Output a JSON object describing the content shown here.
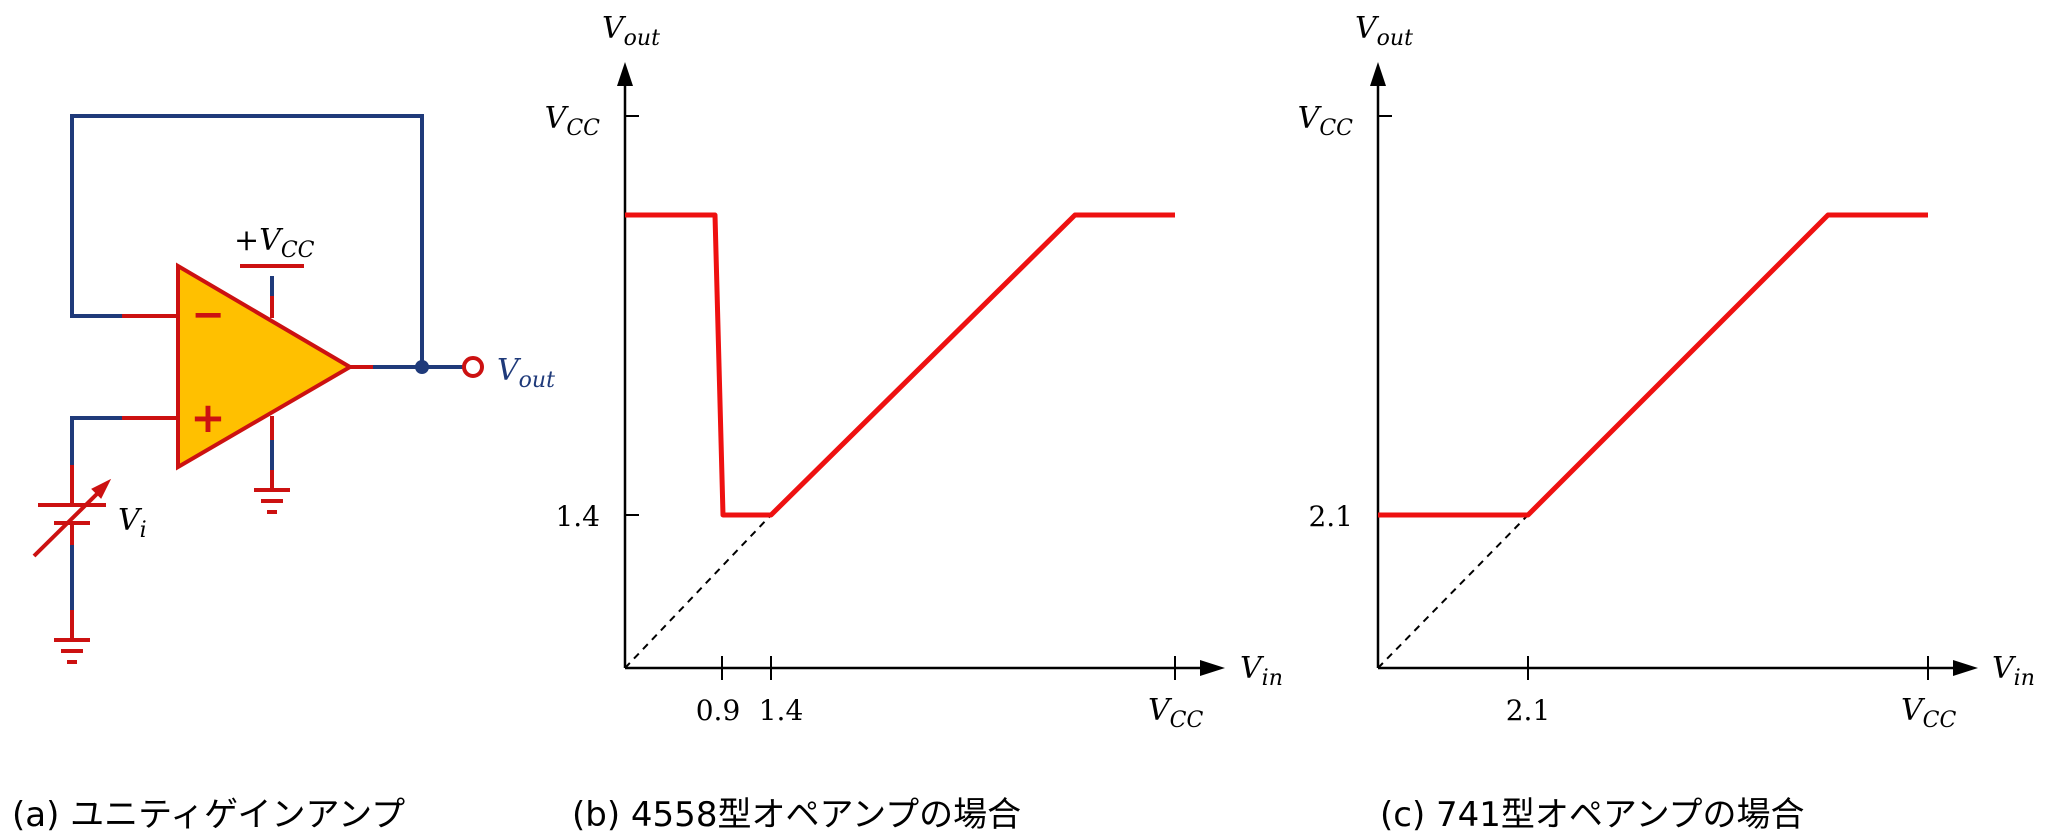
{
  "panel_a": {
    "caption": "(a)  ユニティゲインアンプ",
    "vcc_label": {
      "prefix": "+",
      "main": "V",
      "sub": "CC"
    },
    "vout_label": {
      "main": "V",
      "sub": "out"
    },
    "vi_label": {
      "main": "V",
      "sub": "i"
    },
    "minus_sign": "−",
    "plus_sign": "+"
  },
  "panel_b": {
    "caption": "(b)  4558型オペアンプの場合",
    "y_axis_label": {
      "main": "V",
      "sub": "out"
    },
    "x_axis_label": {
      "main": "V",
      "sub": "in"
    },
    "y_ticks": [
      {
        "text": "1.4"
      },
      {
        "main": "V",
        "sub": "CC"
      }
    ],
    "x_ticks": [
      {
        "text": "0.9"
      },
      {
        "text": "1.4"
      },
      {
        "main": "V",
        "sub": "CC"
      }
    ]
  },
  "panel_c": {
    "caption": "(c)  741型オペアンプの場合",
    "y_axis_label": {
      "main": "V",
      "sub": "out"
    },
    "x_axis_label": {
      "main": "V",
      "sub": "in"
    },
    "y_ticks": [
      {
        "text": "2.1"
      },
      {
        "main": "V",
        "sub": "CC"
      }
    ],
    "x_ticks": [
      {
        "text": "2.1"
      },
      {
        "main": "V",
        "sub": "CC"
      }
    ]
  },
  "colors": {
    "wire": "#1f3a7a",
    "component": "#cc1111",
    "curve": "#ee1111",
    "opamp_fill": "#ffc000"
  }
}
